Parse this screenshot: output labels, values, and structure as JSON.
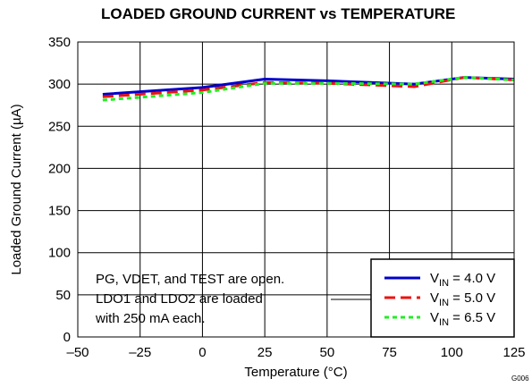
{
  "chart_data": {
    "type": "line",
    "title": "LOADED GROUND CURRENT vs TEMPERATURE",
    "xlabel": "Temperature (°C)",
    "ylabel": "Loaded Ground Current (µA)",
    "xlim": [
      -50,
      125
    ],
    "ylim": [
      0,
      350
    ],
    "xticks": [
      -50,
      -25,
      0,
      25,
      50,
      75,
      100,
      125
    ],
    "yticks": [
      0,
      50,
      100,
      150,
      200,
      250,
      300,
      350
    ],
    "xtick_labels": [
      "–50",
      "–25",
      "0",
      "25",
      "50",
      "75",
      "100",
      "125"
    ],
    "grid": true,
    "legend_position": "bottom-right",
    "series": [
      {
        "name": "V_IN = 4.0 V",
        "label_main": "V",
        "label_sub": "IN",
        "label_rest": " = 4.0 V",
        "color": "#0000cc",
        "dash": "solid",
        "x": [
          -40,
          0,
          25,
          50,
          85,
          105,
          125
        ],
        "y": [
          288,
          296,
          306,
          304,
          300,
          308,
          306
        ]
      },
      {
        "name": "V_IN = 5.0 V",
        "label_main": "V",
        "label_sub": "IN",
        "label_rest": " = 5.0 V",
        "color": "#ee1111",
        "dash": "dashed",
        "x": [
          -40,
          0,
          25,
          50,
          85,
          105,
          125
        ],
        "y": [
          285,
          293,
          302,
          301,
          297,
          308,
          305
        ]
      },
      {
        "name": "V_IN = 6.5 V",
        "label_main": "V",
        "label_sub": "IN",
        "label_rest": " = 6.5 V",
        "color": "#22ee22",
        "dash": "dotted",
        "x": [
          -40,
          0,
          25,
          50,
          85,
          105,
          125
        ],
        "y": [
          281,
          290,
          301,
          301,
          300,
          308,
          305
        ]
      }
    ],
    "annotation": [
      "PG, VDET, and TEST are open.",
      "LDO1 and LDO2 are loaded",
      "with 250 mA each."
    ],
    "figure_id": "G006"
  }
}
